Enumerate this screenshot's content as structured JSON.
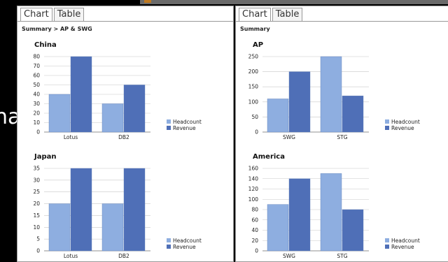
{
  "background": {
    "partial_text": "na"
  },
  "colors": {
    "headcount": "#8EAEE0",
    "revenue": "#4F6FB7",
    "grid": "#c8c8c8"
  },
  "panels": [
    {
      "tabs": [
        "Chart",
        "Table"
      ],
      "breadcrumb": "Summary > AP & SWG",
      "charts": [
        "china",
        "japan"
      ]
    },
    {
      "tabs": [
        "Chart",
        "Table"
      ],
      "breadcrumb": "Summary",
      "charts": [
        "ap",
        "america"
      ]
    }
  ],
  "chart_data": [
    {
      "id": "china",
      "type": "bar",
      "title": "China",
      "categories": [
        "Lotus",
        "DB2"
      ],
      "series": [
        {
          "name": "Headcount",
          "values": [
            40,
            30
          ]
        },
        {
          "name": "Revenue",
          "values": [
            80,
            50
          ]
        }
      ],
      "ylim": [
        0,
        80
      ],
      "yticks": [
        0,
        10,
        20,
        30,
        40,
        50,
        60,
        70,
        80
      ],
      "grid": true,
      "legend": "right"
    },
    {
      "id": "japan",
      "type": "bar",
      "title": "Japan",
      "categories": [
        "Lotus",
        "DB2"
      ],
      "series": [
        {
          "name": "Headcount",
          "values": [
            20,
            20
          ]
        },
        {
          "name": "Revenue",
          "values": [
            35,
            35
          ]
        }
      ],
      "ylim": [
        0,
        35
      ],
      "yticks": [
        0,
        5,
        10,
        15,
        20,
        25,
        30,
        35
      ],
      "grid": true,
      "legend": "right"
    },
    {
      "id": "ap",
      "type": "bar",
      "title": "AP",
      "categories": [
        "SWG",
        "STG"
      ],
      "series": [
        {
          "name": "Headcount",
          "values": [
            110,
            250
          ]
        },
        {
          "name": "Revenue",
          "values": [
            200,
            120
          ]
        }
      ],
      "ylim": [
        0,
        250
      ],
      "yticks": [
        0,
        50,
        100,
        150,
        200,
        250
      ],
      "grid": true,
      "legend": "right"
    },
    {
      "id": "america",
      "type": "bar",
      "title": "America",
      "categories": [
        "SWG",
        "STG"
      ],
      "series": [
        {
          "name": "Headcount",
          "values": [
            90,
            150
          ]
        },
        {
          "name": "Revenue",
          "values": [
            140,
            80
          ]
        }
      ],
      "ylim": [
        0,
        160
      ],
      "yticks": [
        0,
        20,
        40,
        60,
        80,
        100,
        120,
        140,
        160
      ],
      "grid": true,
      "legend": "right"
    }
  ]
}
